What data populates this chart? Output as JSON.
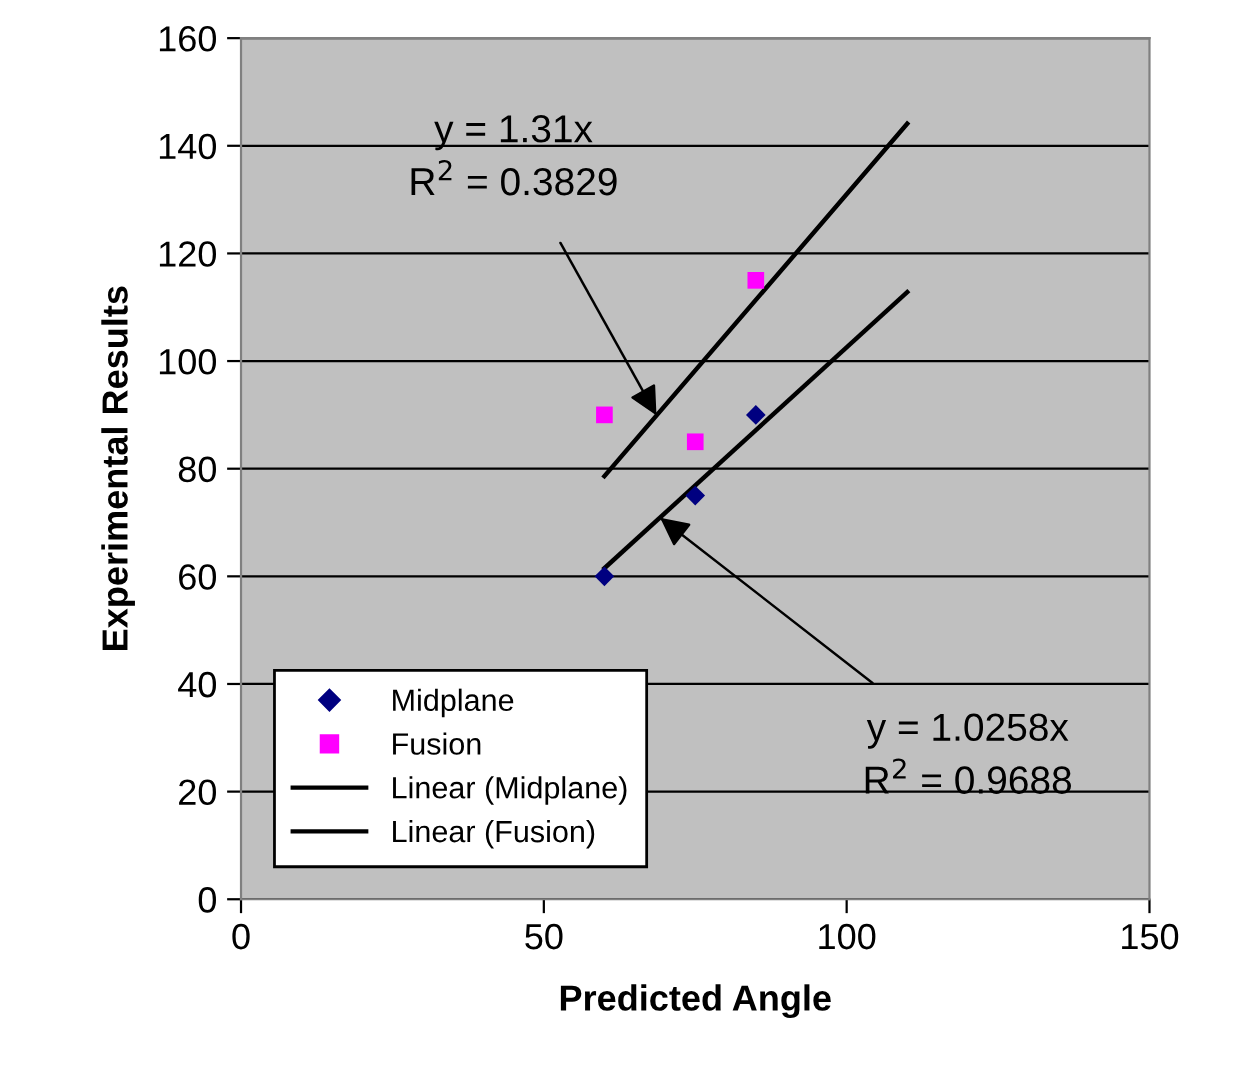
{
  "chart_data": {
    "type": "scatter",
    "xlabel": "Predicted Angle",
    "ylabel": "Experimental Results",
    "xlim": [
      0,
      150
    ],
    "xticks": [
      0,
      50,
      100,
      150
    ],
    "ylim": [
      0,
      160
    ],
    "yticks": [
      0,
      20,
      40,
      60,
      80,
      100,
      120,
      140,
      160
    ],
    "grid": "y",
    "legend": "bottom left",
    "series": [
      {
        "name": "Midplane",
        "marker": "diamond",
        "color": "#000080",
        "x": [
          60,
          75,
          85
        ],
        "values": [
          60,
          75,
          90
        ]
      },
      {
        "name": "Fusion",
        "marker": "square",
        "color": "#ff00ff",
        "x": [
          60,
          75,
          85
        ],
        "values": [
          90,
          85,
          115
        ]
      },
      {
        "name": "Linear (Midplane)",
        "type": "line",
        "marker": "none",
        "color": "#000000",
        "x": [
          60,
          110
        ],
        "values": [
          61.5,
          112.8
        ]
      },
      {
        "name": "Linear (Fusion)",
        "type": "line",
        "marker": "none",
        "color": "#000000",
        "x": [
          60,
          110
        ],
        "values": [
          78.6,
          144.1
        ]
      }
    ],
    "annotations": [
      {
        "text": "y = 1.31x\nR$^{2}$ = 0.3829",
        "x": 68.6,
        "y": 89.9
      },
      {
        "text": "y = 1.0258x\nR$^{2}$ = 0.9688",
        "x": 69.2,
        "y": 70.9
      }
    ]
  }
}
